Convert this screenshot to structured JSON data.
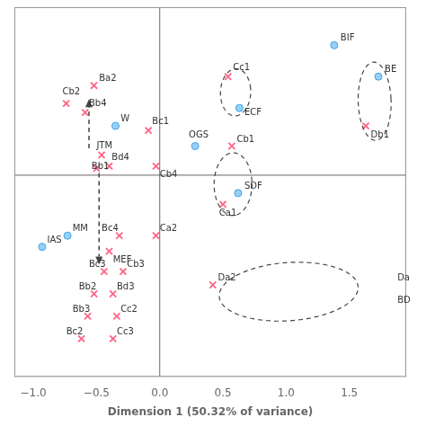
{
  "chart_data": {
    "type": "scatter",
    "xlabel": "Dimension 1 (50.32% of variance)",
    "xlim": [
      -1.15,
      1.95
    ],
    "ylim": [
      -0.9,
      0.75
    ],
    "xticks": [
      {
        "value": -1.0,
        "label": "−1.0"
      },
      {
        "value": -0.5,
        "label": "−0.5"
      },
      {
        "value": 0.0,
        "label": "0.0"
      },
      {
        "value": 0.5,
        "label": "0.5"
      },
      {
        "value": 1.0,
        "label": "1.0"
      },
      {
        "value": 1.5,
        "label": "1.5"
      }
    ],
    "yticks": [],
    "tick_labels": "x",
    "grid": false,
    "hlines": [
      0
    ],
    "vlines": [
      0
    ],
    "series": [
      {
        "marker": "circle",
        "points": [
          {
            "label": "BIF",
            "x": 1.38,
            "y": 0.58,
            "label_x": 1.43,
            "label_y": 0.59
          },
          {
            "label": "BE",
            "x": 1.73,
            "y": 0.44,
            "label_x": 1.78,
            "label_y": 0.45
          },
          {
            "label": "ECF",
            "x": 0.63,
            "y": 0.3,
            "label_x": 0.67,
            "label_y": 0.26
          },
          {
            "label": "OGS",
            "x": 0.28,
            "y": 0.13,
            "label_x": 0.23,
            "label_y": 0.16
          },
          {
            "label": "SDF",
            "x": 0.62,
            "y": -0.08,
            "label_x": 0.67,
            "label_y": -0.07
          },
          {
            "label": "W",
            "x": -0.35,
            "y": 0.22,
            "label_x": -0.31,
            "label_y": 0.23
          },
          {
            "label": "IAS",
            "x": -0.93,
            "y": -0.32,
            "label_x": -0.89,
            "label_y": -0.31
          },
          {
            "label": "MM",
            "x": -0.73,
            "y": -0.27,
            "label_x": -0.69,
            "label_y": -0.26
          }
        ]
      },
      {
        "marker": "x",
        "points": [
          {
            "label": "Cc1",
            "x": 0.54,
            "y": 0.44,
            "label_x": 0.58,
            "label_y": 0.46
          },
          {
            "label": "Cb1",
            "x": 0.57,
            "y": 0.13,
            "label_x": 0.61,
            "label_y": 0.14
          },
          {
            "label": "Ca1",
            "x": 0.5,
            "y": -0.13,
            "label_x": 0.47,
            "label_y": -0.19
          },
          {
            "label": "Db1",
            "x": 1.63,
            "y": 0.22,
            "label_x": 1.67,
            "label_y": 0.16
          },
          {
            "label": "Da2",
            "x": 0.42,
            "y": -0.49,
            "label_x": 0.46,
            "label_y": -0.48
          },
          {
            "label": "Ba2",
            "x": -0.52,
            "y": 0.4,
            "label_x": -0.48,
            "label_y": 0.41
          },
          {
            "label": "Cb2",
            "x": -0.74,
            "y": 0.32,
            "label_x": -0.77,
            "label_y": 0.35
          },
          {
            "label": "Bb4",
            "x": -0.59,
            "y": 0.28,
            "label_x": -0.56,
            "label_y": 0.3
          },
          {
            "label": "JTM",
            "x": -0.46,
            "y": 0.09,
            "label_x": -0.5,
            "label_y": 0.11
          },
          {
            "label": "Bb1",
            "x": -0.5,
            "y": 0.03,
            "label_x": -0.54,
            "label_y": 0.02
          },
          {
            "label": "Bd4",
            "x": -0.4,
            "y": 0.04,
            "label_x": -0.38,
            "label_y": 0.06
          },
          {
            "label": "Bc1",
            "x": -0.09,
            "y": 0.2,
            "label_x": -0.06,
            "label_y": 0.22
          },
          {
            "label": "Cb4",
            "x": -0.03,
            "y": 0.04,
            "label_x": 0.0,
            "label_y": -0.02
          },
          {
            "label": "Bc4",
            "x": -0.32,
            "y": -0.27,
            "label_x": -0.46,
            "label_y": -0.26
          },
          {
            "label": "Ca2",
            "x": -0.03,
            "y": -0.27,
            "label_x": 0.0,
            "label_y": -0.26
          },
          {
            "label": "MEF",
            "x": -0.4,
            "y": -0.34,
            "label_x": -0.37,
            "label_y": -0.4
          },
          {
            "label": "Bc3",
            "x": -0.44,
            "y": -0.43,
            "label_x": -0.56,
            "label_y": -0.42
          },
          {
            "label": "Cb3",
            "x": -0.29,
            "y": -0.43,
            "label_x": -0.26,
            "label_y": -0.42
          },
          {
            "label": "Bb2",
            "x": -0.52,
            "y": -0.53,
            "label_x": -0.64,
            "label_y": -0.52
          },
          {
            "label": "Bd3",
            "x": -0.37,
            "y": -0.53,
            "label_x": -0.34,
            "label_y": -0.52
          },
          {
            "label": "Bb3",
            "x": -0.57,
            "y": -0.63,
            "label_x": -0.69,
            "label_y": -0.62
          },
          {
            "label": "Cc2",
            "x": -0.34,
            "y": -0.63,
            "label_x": -0.31,
            "label_y": -0.62
          },
          {
            "label": "Bc2",
            "x": -0.62,
            "y": -0.73,
            "label_x": -0.74,
            "label_y": -0.72
          },
          {
            "label": "Cc3",
            "x": -0.37,
            "y": -0.73,
            "label_x": -0.34,
            "label_y": -0.72
          }
        ]
      }
    ],
    "arrows": [
      {
        "x_start": -0.56,
        "y_start": 0.12,
        "x_end": -0.56,
        "y_end": 0.34
      },
      {
        "x_start": -0.48,
        "y_start": 0.01,
        "x_end": -0.48,
        "y_end": -0.4
      }
    ],
    "ellipses": [
      {
        "cx": 0.6,
        "cy": 0.37,
        "width": 0.24,
        "height": 0.21,
        "angle": 8
      },
      {
        "cx": 0.58,
        "cy": -0.04,
        "width": 0.3,
        "height": 0.28,
        "angle": 5
      },
      {
        "cx": 1.7,
        "cy": 0.33,
        "width": 0.26,
        "height": 0.35,
        "angle": 5
      },
      {
        "cx": 1.02,
        "cy": -0.52,
        "width": 1.1,
        "height": 0.26,
        "angle": 2
      }
    ],
    "annotations": [
      {
        "text": "Da",
        "x": 1.88,
        "y": -0.48
      },
      {
        "text": "BD",
        "x": 1.88,
        "y": -0.58
      }
    ]
  }
}
